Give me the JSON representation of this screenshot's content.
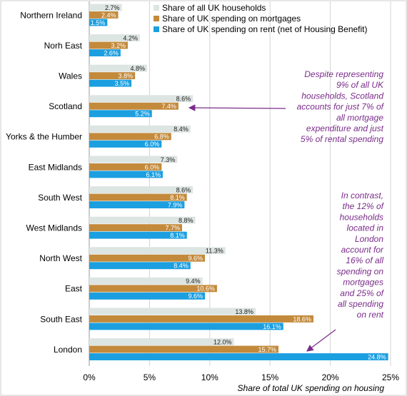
{
  "chart_data": {
    "type": "bar",
    "orientation": "horizontal",
    "categories": [
      "Northern Ireland",
      "Norh East",
      "Wales",
      "Scotland",
      "Yorks & the Humber",
      "East Midlands",
      "South West",
      "West Midlands",
      "North West",
      "East",
      "South East",
      "London"
    ],
    "series": [
      {
        "name": "Share of all UK households",
        "color": "#dde5e2",
        "label_color": "#222222",
        "values": [
          2.7,
          4.2,
          4.8,
          8.6,
          8.4,
          7.3,
          8.6,
          8.8,
          11.3,
          9.4,
          13.8,
          12.0
        ]
      },
      {
        "name": "Share of UK spending on mortgages",
        "color": "#c38a3c",
        "label_color": "#ffffff",
        "values": [
          2.4,
          3.2,
          3.8,
          7.4,
          6.8,
          6.0,
          8.1,
          7.7,
          9.6,
          10.6,
          18.6,
          15.7
        ]
      },
      {
        "name": "Share of UK spending on rent (net of Housing Benefit)",
        "color": "#1c9fe0",
        "label_color": "#ffffff",
        "values": [
          1.5,
          2.6,
          3.5,
          5.2,
          6.0,
          6.1,
          7.9,
          8.1,
          8.4,
          9.6,
          16.1,
          24.8
        ]
      }
    ],
    "xlim": [
      0,
      25
    ],
    "xticks": [
      "0%",
      "5%",
      "10%",
      "15%",
      "20%",
      "25%"
    ],
    "xlabel": "Share of total UK spending on housing",
    "legend_position": "top-right",
    "annotations": [
      {
        "lines": [
          "Despite representing",
          "9% of all UK",
          "households, Scotland",
          "accounts for just 7% of",
          "all mortgage",
          "expenditure and just",
          "5% of rental spending"
        ],
        "target": "Scotland",
        "color": "#7a2c8a"
      },
      {
        "lines": [
          "In contrast,",
          "the 12% of",
          "households",
          "located in",
          "London",
          "account for",
          "16% of all",
          "spending on",
          "mortgages",
          "and 25% of",
          "all spending",
          "on rent"
        ],
        "target": "London",
        "color": "#7a2c8a"
      }
    ]
  }
}
